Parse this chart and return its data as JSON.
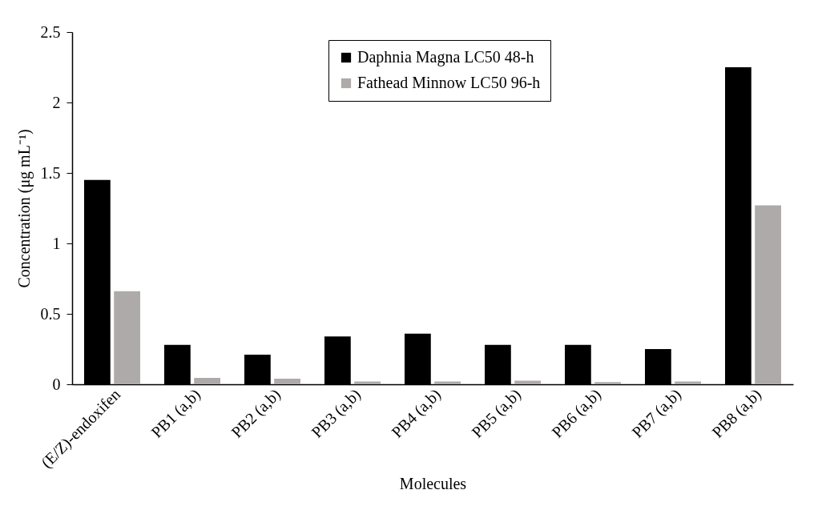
{
  "chart_data": {
    "type": "bar",
    "xlabel": "Molecules",
    "ylabel": "Concentration (μg mL⁻¹)",
    "categories": [
      "(E/Z)-endoxifen",
      "PB1 (a,b)",
      "PB2 (a,b)",
      "PB3 (a,b)",
      "PB4 (a,b)",
      "PB5 (a,b)",
      "PB6 (a,b)",
      "PB7 (a,b)",
      "PB8 (a,b)"
    ],
    "series": [
      {
        "name": "Daphnia Magna LC50 48-h",
        "color": "#000000",
        "values": [
          1.45,
          0.28,
          0.21,
          0.34,
          0.36,
          0.28,
          0.28,
          0.25,
          2.25
        ]
      },
      {
        "name": "Fathead Minnow LC50 96-h",
        "color": "#aeaaaa",
        "values": [
          0.66,
          0.045,
          0.04,
          0.02,
          0.02,
          0.025,
          0.015,
          0.02,
          1.27
        ]
      }
    ],
    "ylim": [
      0,
      2.5
    ],
    "yticks": [
      0,
      0.5,
      1,
      1.5,
      2,
      2.5
    ],
    "grid": false,
    "legend": "top"
  }
}
